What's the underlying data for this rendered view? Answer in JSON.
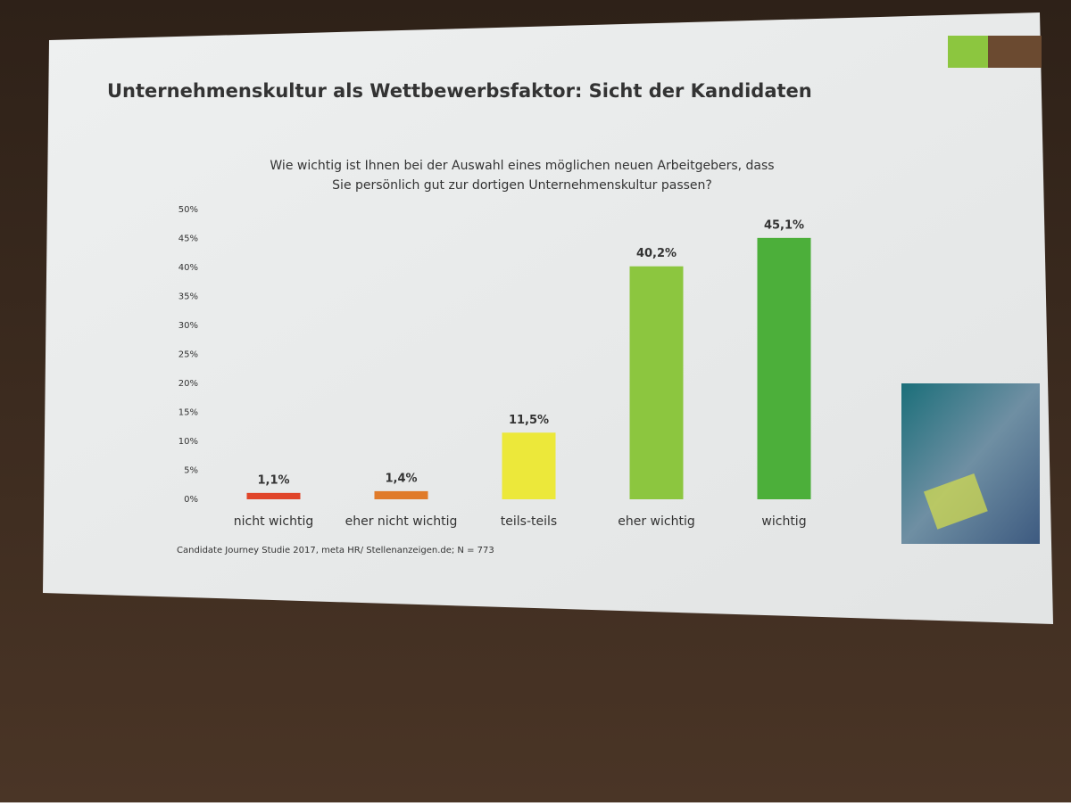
{
  "slide_title": "Unternehmenskultur als Wettbewerbsfaktor: Sicht der Kandidaten",
  "source": "Candidate Journey Studie 2017, meta HR/ Stellenanzeigen.de; N = 773",
  "chart_data": {
    "type": "bar",
    "title": [
      "Wie wichtig ist Ihnen bei der Auswahl eines möglichen neuen Arbeitgebers, dass",
      "Sie persönlich gut zur dortigen Unternehmenskultur passen?"
    ],
    "categories": [
      "nicht wichtig",
      "eher nicht wichtig",
      "teils-teils",
      "eher wichtig",
      "wichtig"
    ],
    "values": [
      1.1,
      1.4,
      11.5,
      40.2,
      45.1
    ],
    "value_labels": [
      "1,1%",
      "1,4%",
      "11,5%",
      "40,2%",
      "45,1%"
    ],
    "colors": [
      "#e0452a",
      "#e07b2a",
      "#ece83a",
      "#8cc63f",
      "#4caf3a"
    ],
    "ylim": [
      0,
      50
    ],
    "yticks": [
      {
        "value": 0,
        "label": "0%"
      },
      {
        "value": 5,
        "label": "5%"
      },
      {
        "value": 10,
        "label": "10%"
      },
      {
        "value": 15,
        "label": "15%"
      },
      {
        "value": 20,
        "label": "20%"
      },
      {
        "value": 25,
        "label": "25%"
      },
      {
        "value": 30,
        "label": "30%"
      },
      {
        "value": 35,
        "label": "35%"
      },
      {
        "value": 40,
        "label": "40%"
      },
      {
        "value": 45,
        "label": "45%"
      },
      {
        "value": 50,
        "label": "50%"
      }
    ],
    "grid": false
  }
}
